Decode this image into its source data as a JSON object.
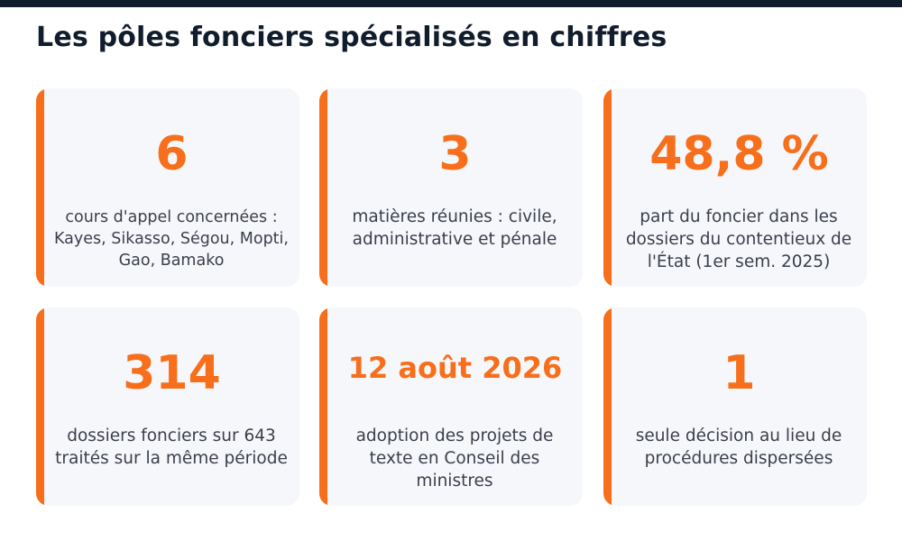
{
  "title": "Les pôles fonciers spécialisés en chiffres",
  "colors": {
    "accent": "#f76e1b",
    "title": "#111c2c",
    "card_bg": "#f6f7fb",
    "text": "#3b3f4a"
  },
  "stats": [
    {
      "value": "6",
      "label": "cours d'appel concernées : Kayes, Sikasso, Ségou, Mopti, Gao, Bamako"
    },
    {
      "value": "3",
      "label": "matières réunies : civile, administrative et pénale"
    },
    {
      "value": "48,8 %",
      "label": "part du foncier dans les dossiers du contentieux de l'État (1er sem. 2025)"
    },
    {
      "value": "314",
      "label": "dossiers fonciers sur 643 traités sur la même période"
    },
    {
      "value": "12 août 2026",
      "label": "adoption des projets de texte en Conseil des ministres"
    },
    {
      "value": "1",
      "label": "seule décision au lieu de procédures dispersées"
    }
  ]
}
